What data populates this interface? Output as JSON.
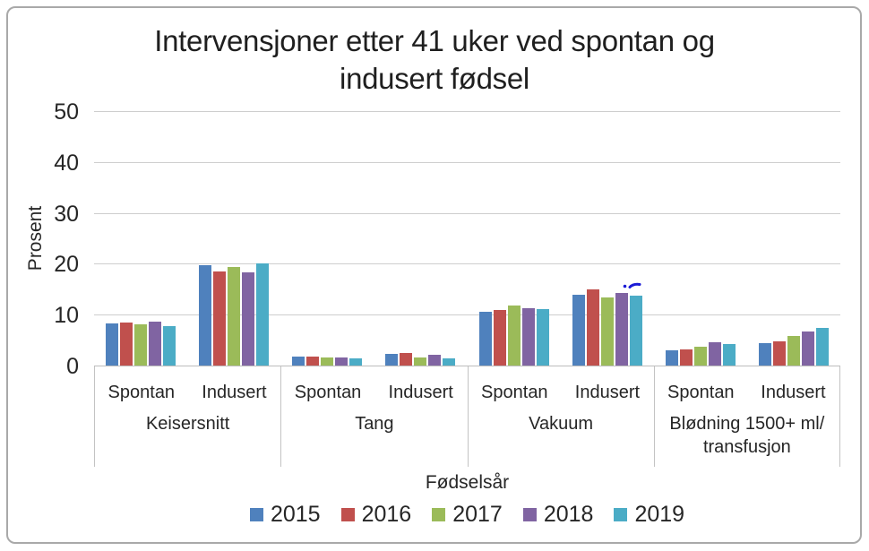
{
  "chart_data": {
    "type": "bar",
    "title": "Intervensjoner etter 41 uker ved spontan og indusert fødsel",
    "title_lines": [
      "Intervensjoner etter 41 uker ved spontan og",
      "indusert fødsel"
    ],
    "ylabel": "Prosent",
    "xlabel": "Fødselsår",
    "ylim": [
      0,
      50
    ],
    "yticks": [
      0,
      10,
      20,
      30,
      40,
      50
    ],
    "grid": true,
    "legend_position": "bottom",
    "groups": [
      {
        "label": "Keisersnitt",
        "label_lines": [
          "Keisersnitt"
        ],
        "sub": [
          "Spontan",
          "Indusert"
        ]
      },
      {
        "label": "Tang",
        "label_lines": [
          "Tang"
        ],
        "sub": [
          "Spontan",
          "Indusert"
        ]
      },
      {
        "label": "Vakuum",
        "label_lines": [
          "Vakuum"
        ],
        "sub": [
          "Spontan",
          "Indusert"
        ]
      },
      {
        "label": "Blødning 1500+ ml/ transfusjon",
        "label_lines": [
          "Blødning 1500+ ml/",
          "transfusjon"
        ],
        "sub": [
          "Spontan",
          "Indusert"
        ]
      }
    ],
    "series": [
      {
        "name": "2015",
        "color": "#4f81bd",
        "values": [
          [
            8.4,
            19.9
          ],
          [
            1.9,
            2.5
          ],
          [
            10.8,
            14.1
          ],
          [
            3.1,
            4.6
          ]
        ]
      },
      {
        "name": "2016",
        "color": "#c0504d",
        "values": [
          [
            8.6,
            18.6
          ],
          [
            2.0,
            2.6
          ],
          [
            11.1,
            15.1
          ],
          [
            3.4,
            4.9
          ]
        ]
      },
      {
        "name": "2017",
        "color": "#9bbb59",
        "values": [
          [
            8.2,
            19.5
          ],
          [
            1.8,
            1.8
          ],
          [
            11.9,
            13.6
          ],
          [
            3.8,
            6.0
          ]
        ]
      },
      {
        "name": "2018",
        "color": "#8064a2",
        "values": [
          [
            8.8,
            18.5
          ],
          [
            1.8,
            2.3
          ],
          [
            11.4,
            14.4
          ],
          [
            4.7,
            6.9
          ]
        ]
      },
      {
        "name": "2019",
        "color": "#4bacc6",
        "values": [
          [
            7.9,
            20.3
          ],
          [
            1.5,
            1.6
          ],
          [
            11.3,
            13.9
          ],
          [
            4.4,
            7.6
          ]
        ]
      }
    ],
    "decorations": {
      "ink_mark_color": "#1b1bd6"
    }
  }
}
